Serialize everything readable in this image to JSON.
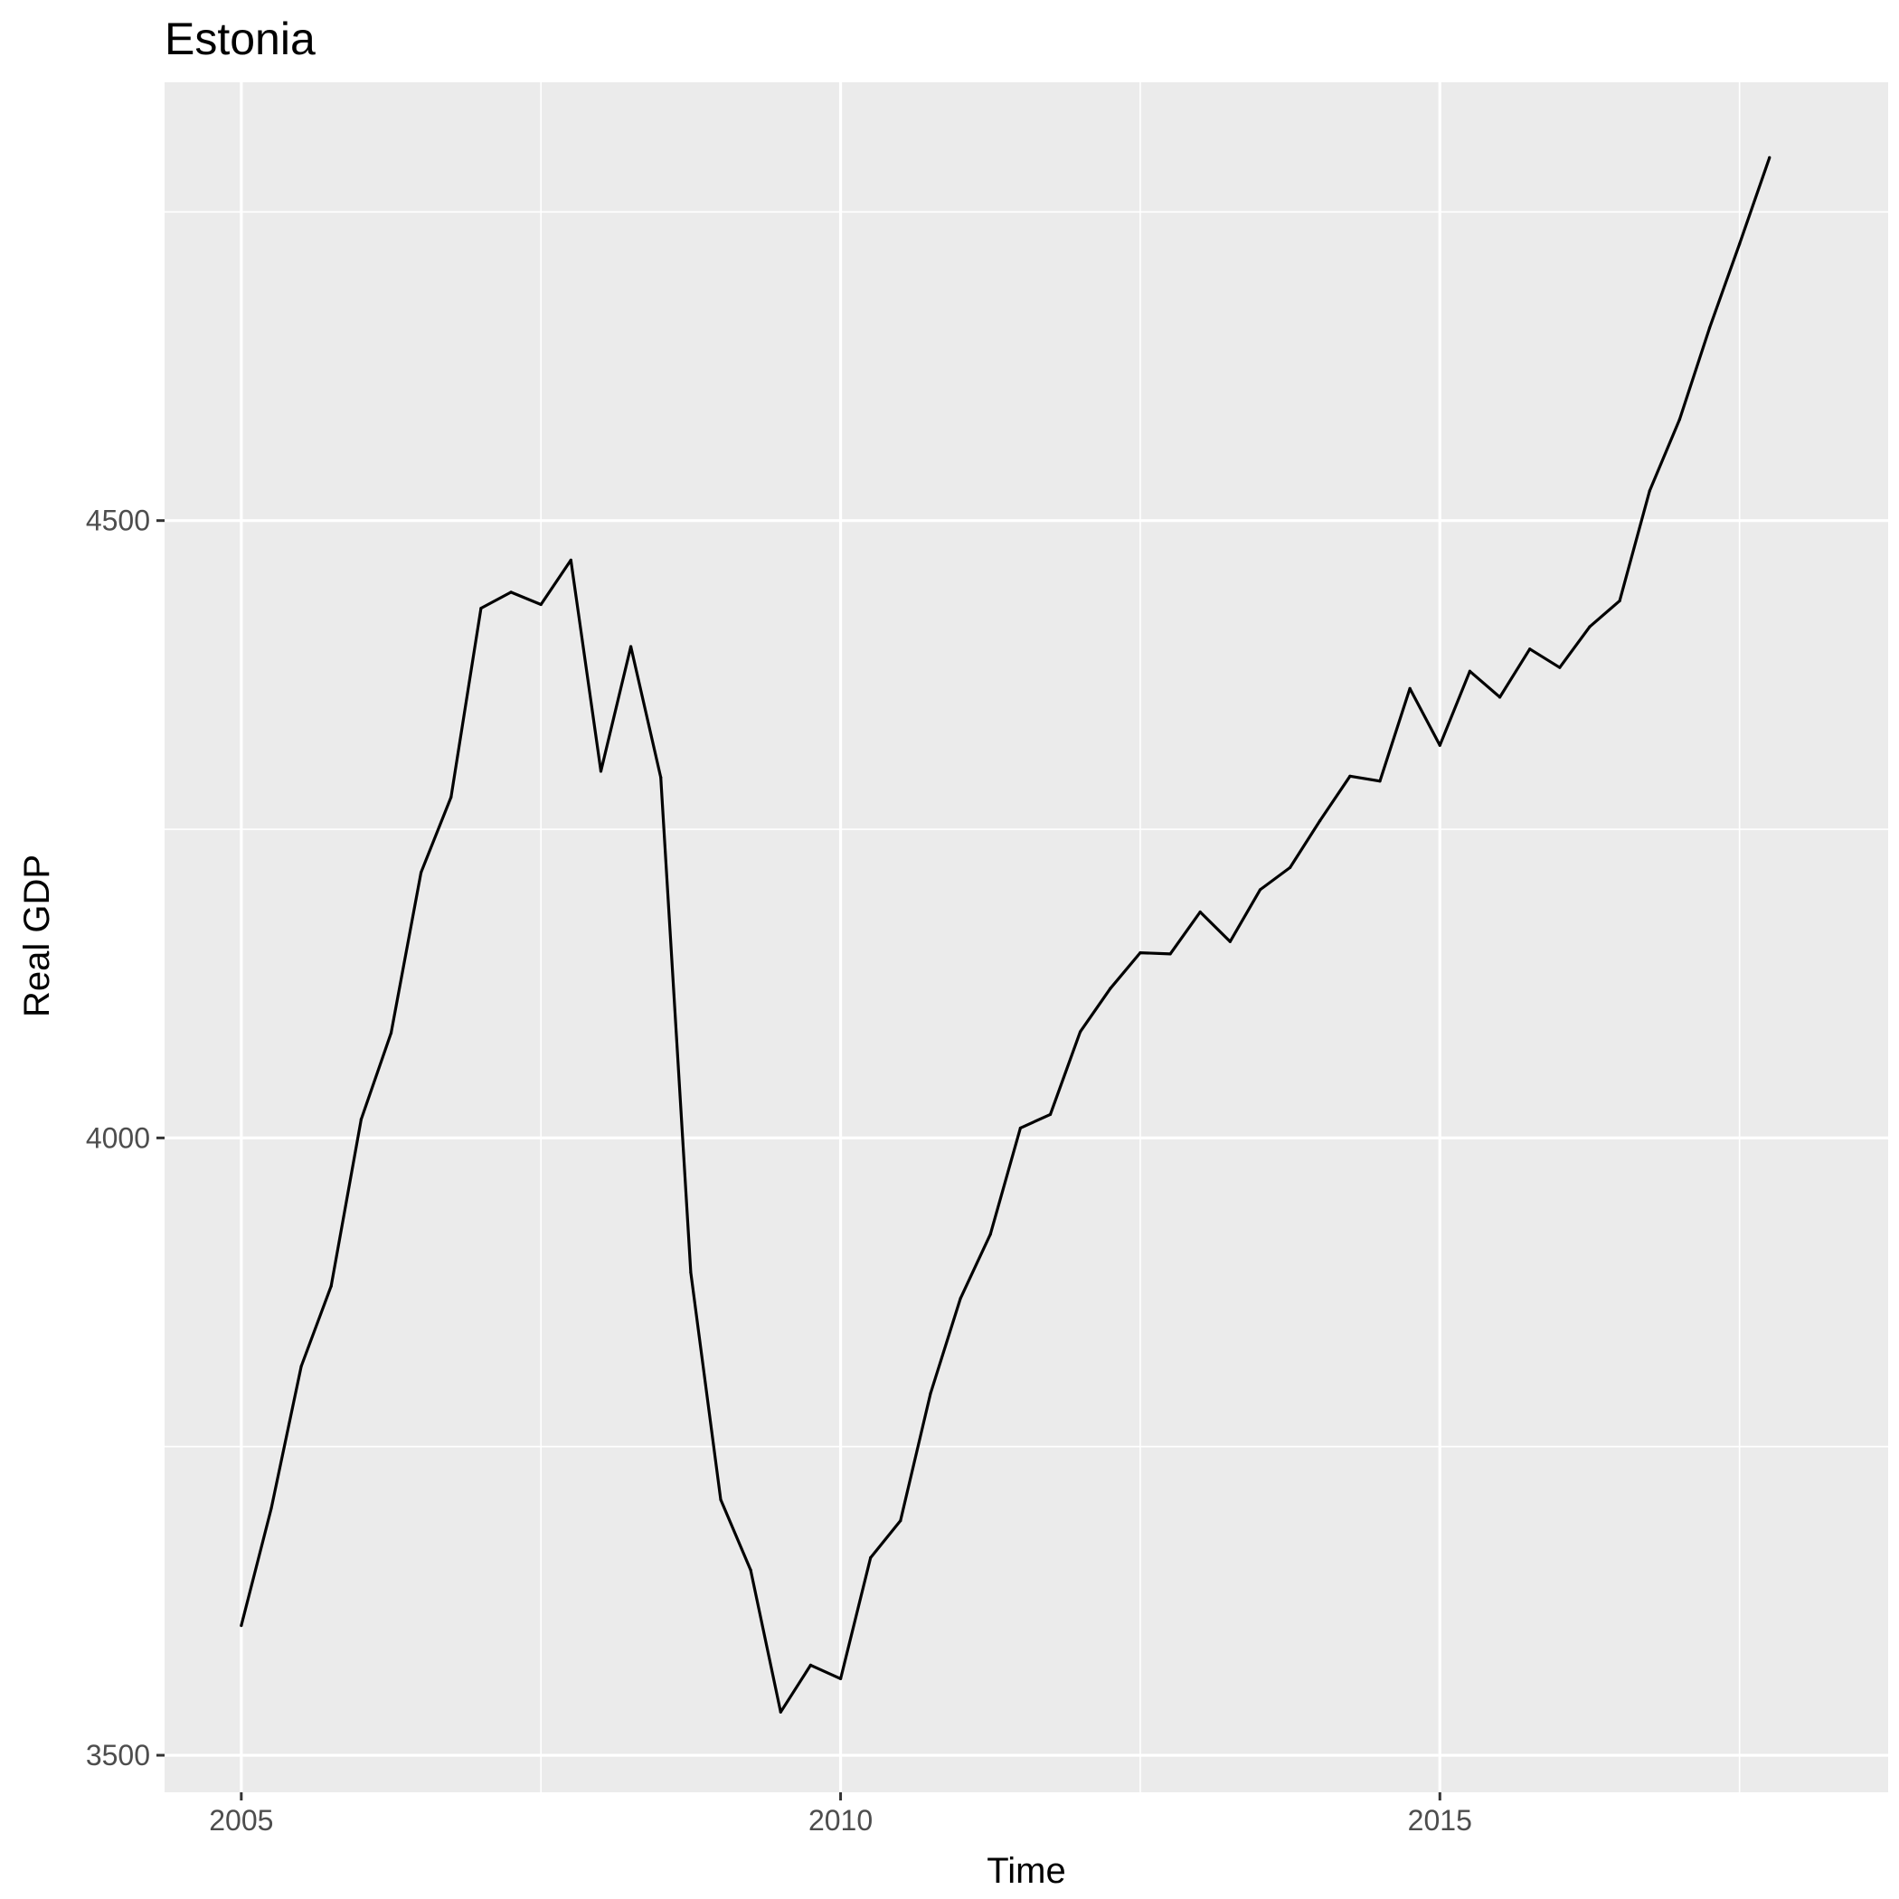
{
  "chart_data": {
    "type": "line",
    "title": "Estonia",
    "xlabel": "Time",
    "ylabel": "Real GDP",
    "xlim": [
      2004.36,
      2018.74
    ],
    "ylim": [
      3470,
      4855
    ],
    "x_ticks": [
      2005,
      2010,
      2015
    ],
    "x_tick_labels": [
      "2005",
      "2010",
      "2015"
    ],
    "x_minor_ticks": [
      2007.5,
      2012.5,
      2017.5
    ],
    "y_ticks": [
      3500,
      4000,
      4500
    ],
    "y_tick_labels": [
      "3500",
      "4000",
      "4500"
    ],
    "y_minor_ticks": [
      3750,
      4250,
      4750
    ],
    "grid": true,
    "colors": {
      "panel": "#EBEBEB",
      "grid": "#FFFFFF",
      "line": "#000000",
      "tick_text": "#4D4D4D"
    },
    "series": [
      {
        "x": [
          2005.0,
          2005.25,
          2005.5,
          2005.75,
          2006.0,
          2006.25,
          2006.5,
          2006.75,
          2007.0,
          2007.25,
          2007.5,
          2007.75,
          2008.0,
          2008.25,
          2008.5,
          2008.75,
          2009.0,
          2009.25,
          2009.5,
          2009.75,
          2010.0,
          2010.25,
          2010.5,
          2010.75,
          2011.0,
          2011.25,
          2011.5,
          2011.75,
          2012.0,
          2012.25,
          2012.5,
          2012.75,
          2013.0,
          2013.25,
          2013.5,
          2013.75,
          2014.0,
          2014.25,
          2014.5,
          2014.75,
          2015.0,
          2015.25,
          2015.5,
          2015.75,
          2016.0,
          2016.25,
          2016.5,
          2016.75,
          2017.0,
          2017.25,
          2017.5,
          2017.75
        ],
        "y": [
          3605,
          3700,
          3815,
          3880,
          4015,
          4085,
          4215,
          4276,
          4429,
          4442,
          4432,
          4468,
          4297,
          4398,
          4292,
          3891,
          3707,
          3650,
          3535,
          3573,
          3562,
          3660,
          3690,
          3793,
          3870,
          3922,
          4008,
          4019,
          4086,
          4121,
          4150,
          4149,
          4183,
          4159,
          4201,
          4219,
          4257,
          4293,
          4289,
          4364,
          4318,
          4378,
          4357,
          4396,
          4381,
          4414,
          4435,
          4524,
          4582,
          4656,
          4724,
          4794
        ]
      }
    ]
  }
}
